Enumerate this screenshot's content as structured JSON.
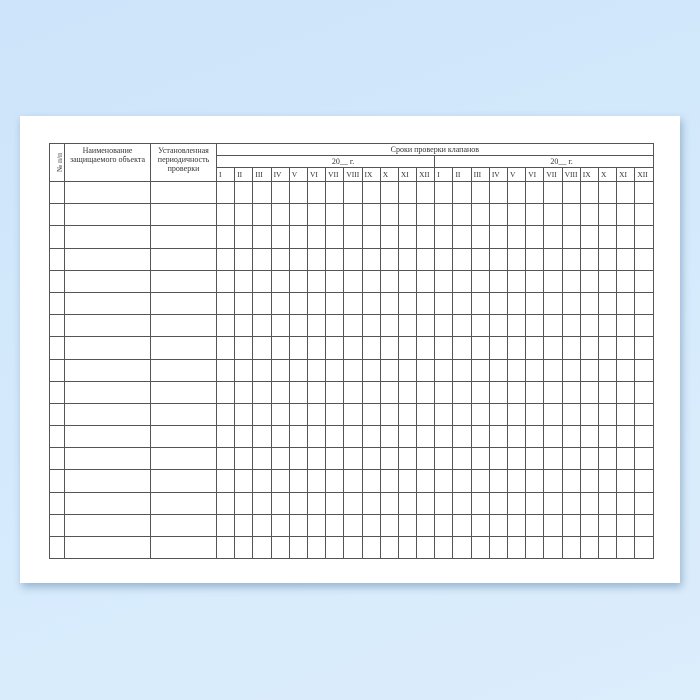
{
  "form": {
    "col_number": "№ п/п",
    "col_name": "Наименование защищаемого объекта",
    "col_period": "Установленная периодичность проверки",
    "col_schedule": "Сроки проверки клапанов",
    "years": [
      "20__ г.",
      "20__ г."
    ],
    "months": [
      "I",
      "II",
      "III",
      "IV",
      "V",
      "VI",
      "VII",
      "VIII",
      "IX",
      "X",
      "XI",
      "XII"
    ],
    "empty_rows": 17
  }
}
